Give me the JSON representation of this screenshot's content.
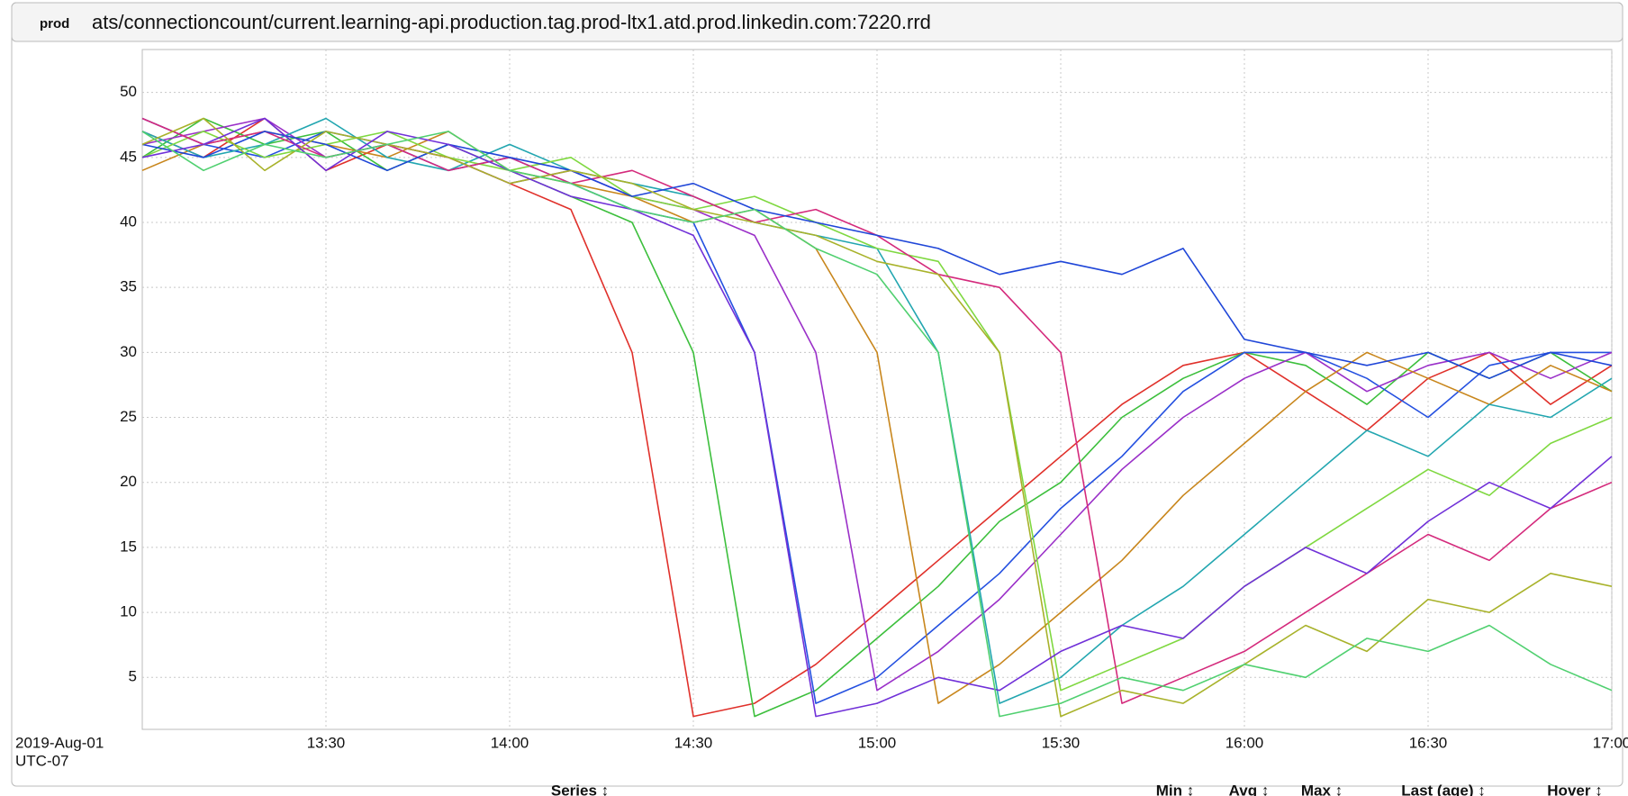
{
  "header": {
    "env": "prod",
    "title": "ats/connectioncount/current.learning-api.production.tag.prod-ltx1.atd.prod.linkedin.com:7220.rrd"
  },
  "chart_data": {
    "type": "line",
    "x": [
      "13:00",
      "13:10",
      "13:20",
      "13:30",
      "13:40",
      "13:50",
      "14:00",
      "14:10",
      "14:20",
      "14:30",
      "14:40",
      "14:50",
      "15:00",
      "15:10",
      "15:20",
      "15:30",
      "15:40",
      "15:50",
      "16:00",
      "16:10",
      "16:20",
      "16:30",
      "16:40",
      "16:50",
      "17:00"
    ],
    "xlim": [
      "13:00",
      "17:00"
    ],
    "xticks": [
      "13:30",
      "14:00",
      "14:30",
      "15:00",
      "15:30",
      "16:00",
      "16:30",
      "17:00"
    ],
    "x_axis_note": [
      "2019-Aug-01",
      "UTC-07"
    ],
    "ylim": [
      1,
      53.3
    ],
    "yticks": [
      5,
      10,
      15,
      20,
      25,
      30,
      35,
      40,
      45,
      50
    ],
    "grid": true,
    "series": [
      {
        "color": "#e0302a",
        "values": [
          47,
          45,
          48,
          44,
          46,
          45,
          43,
          41,
          30,
          2,
          3,
          6,
          10,
          14,
          18,
          22,
          26,
          29,
          30,
          27,
          24,
          28,
          30,
          26,
          29
        ]
      },
      {
        "color": "#3cbf3c",
        "values": [
          45,
          48,
          46,
          47,
          44,
          46,
          44,
          42,
          40,
          30,
          2,
          4,
          8,
          12,
          17,
          20,
          25,
          28,
          30,
          29,
          26,
          30,
          28,
          30,
          27
        ]
      },
      {
        "color": "#2450e0",
        "values": [
          48,
          46,
          45,
          47,
          46,
          44,
          45,
          43,
          41,
          40,
          30,
          3,
          5,
          9,
          13,
          18,
          22,
          27,
          30,
          30,
          28,
          25,
          29,
          30,
          30
        ]
      },
      {
        "color": "#9a2fc8",
        "values": [
          46,
          47,
          48,
          45,
          46,
          45,
          43,
          44,
          42,
          41,
          39,
          30,
          4,
          7,
          11,
          16,
          21,
          25,
          28,
          30,
          27,
          29,
          30,
          28,
          30
        ]
      },
      {
        "color": "#c8861c",
        "values": [
          44,
          46,
          47,
          46,
          45,
          47,
          44,
          43,
          42,
          40,
          41,
          38,
          30,
          3,
          6,
          10,
          14,
          19,
          23,
          27,
          30,
          28,
          26,
          29,
          27
        ]
      },
      {
        "color": "#22a6b0",
        "values": [
          47,
          45,
          46,
          48,
          45,
          44,
          46,
          44,
          43,
          42,
          40,
          39,
          38,
          30,
          3,
          5,
          9,
          12,
          16,
          20,
          24,
          22,
          26,
          25,
          28
        ]
      },
      {
        "color": "#7fd840",
        "values": [
          45,
          47,
          45,
          46,
          47,
          45,
          44,
          45,
          42,
          41,
          42,
          40,
          38,
          37,
          30,
          4,
          6,
          8,
          12,
          15,
          18,
          21,
          19,
          23,
          25
        ]
      },
      {
        "color": "#d42a7c",
        "values": [
          48,
          46,
          47,
          45,
          46,
          44,
          45,
          43,
          44,
          42,
          40,
          41,
          39,
          36,
          35,
          30,
          3,
          5,
          7,
          10,
          13,
          16,
          14,
          18,
          20
        ]
      },
      {
        "color": "#1f46d8",
        "values": [
          46,
          45,
          47,
          46,
          44,
          46,
          45,
          44,
          42,
          43,
          41,
          40,
          39,
          38,
          36,
          37,
          36,
          38,
          31,
          30,
          29,
          30,
          28,
          30,
          29
        ]
      },
      {
        "color": "#a8b22a",
        "values": [
          46,
          48,
          44,
          47,
          46,
          45,
          43,
          44,
          43,
          41,
          40,
          39,
          37,
          36,
          30,
          2,
          4,
          3,
          6,
          9,
          7,
          11,
          10,
          13,
          12
        ]
      },
      {
        "color": "#7030d8",
        "values": [
          45,
          46,
          48,
          44,
          47,
          46,
          44,
          42,
          41,
          39,
          30,
          2,
          3,
          5,
          4,
          7,
          9,
          8,
          12,
          15,
          13,
          17,
          20,
          18,
          22
        ]
      },
      {
        "color": "#50d070",
        "values": [
          47,
          44,
          46,
          45,
          46,
          47,
          44,
          43,
          41,
          40,
          41,
          38,
          36,
          30,
          2,
          3,
          5,
          4,
          6,
          5,
          8,
          7,
          9,
          6,
          4
        ]
      }
    ]
  },
  "table": {
    "columns": [
      "Series ↕",
      "Min ↕",
      "Avg ↕",
      "Max ↕",
      "Last (age) ↕",
      "Hover ↕"
    ]
  }
}
